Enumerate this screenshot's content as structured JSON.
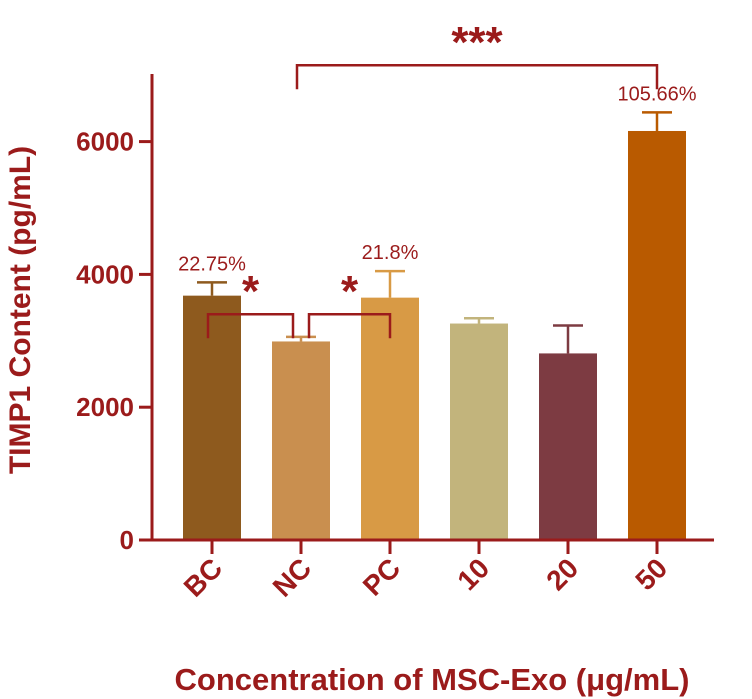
{
  "chart_data": {
    "type": "bar",
    "title": "",
    "xlabel": "Concentration of MSC-Exo (μg/mL)",
    "ylabel": "TIMP1 Content (pg/mL)",
    "ylim": [
      0,
      7000
    ],
    "yticks": [
      0,
      2000,
      4000,
      6000
    ],
    "categories": [
      "BC",
      "NC",
      "PC",
      "10",
      "20",
      "50"
    ],
    "values": [
      3680,
      2990,
      3650,
      3260,
      2810,
      6160
    ],
    "errors": [
      200,
      70,
      400,
      80,
      420,
      280
    ],
    "colors": [
      "#8e5a1e",
      "#c98f4f",
      "#d89a45",
      "#c2b47c",
      "#7d3b42",
      "#b95a00"
    ],
    "annotation_color": "#9b1b1b",
    "percent_labels": [
      {
        "category": "BC",
        "text": "22.75%"
      },
      {
        "category": "PC",
        "text": "21.8%"
      },
      {
        "category": "50",
        "text": "105.66%"
      }
    ],
    "significance": [
      {
        "from": "BC",
        "to": "NC",
        "label": "*",
        "y": 3400
      },
      {
        "from": "NC",
        "to": "PC",
        "label": "*",
        "y": 3400
      },
      {
        "from": "NC",
        "to": "50",
        "label": "***",
        "y": 7150
      }
    ],
    "grid": false
  }
}
